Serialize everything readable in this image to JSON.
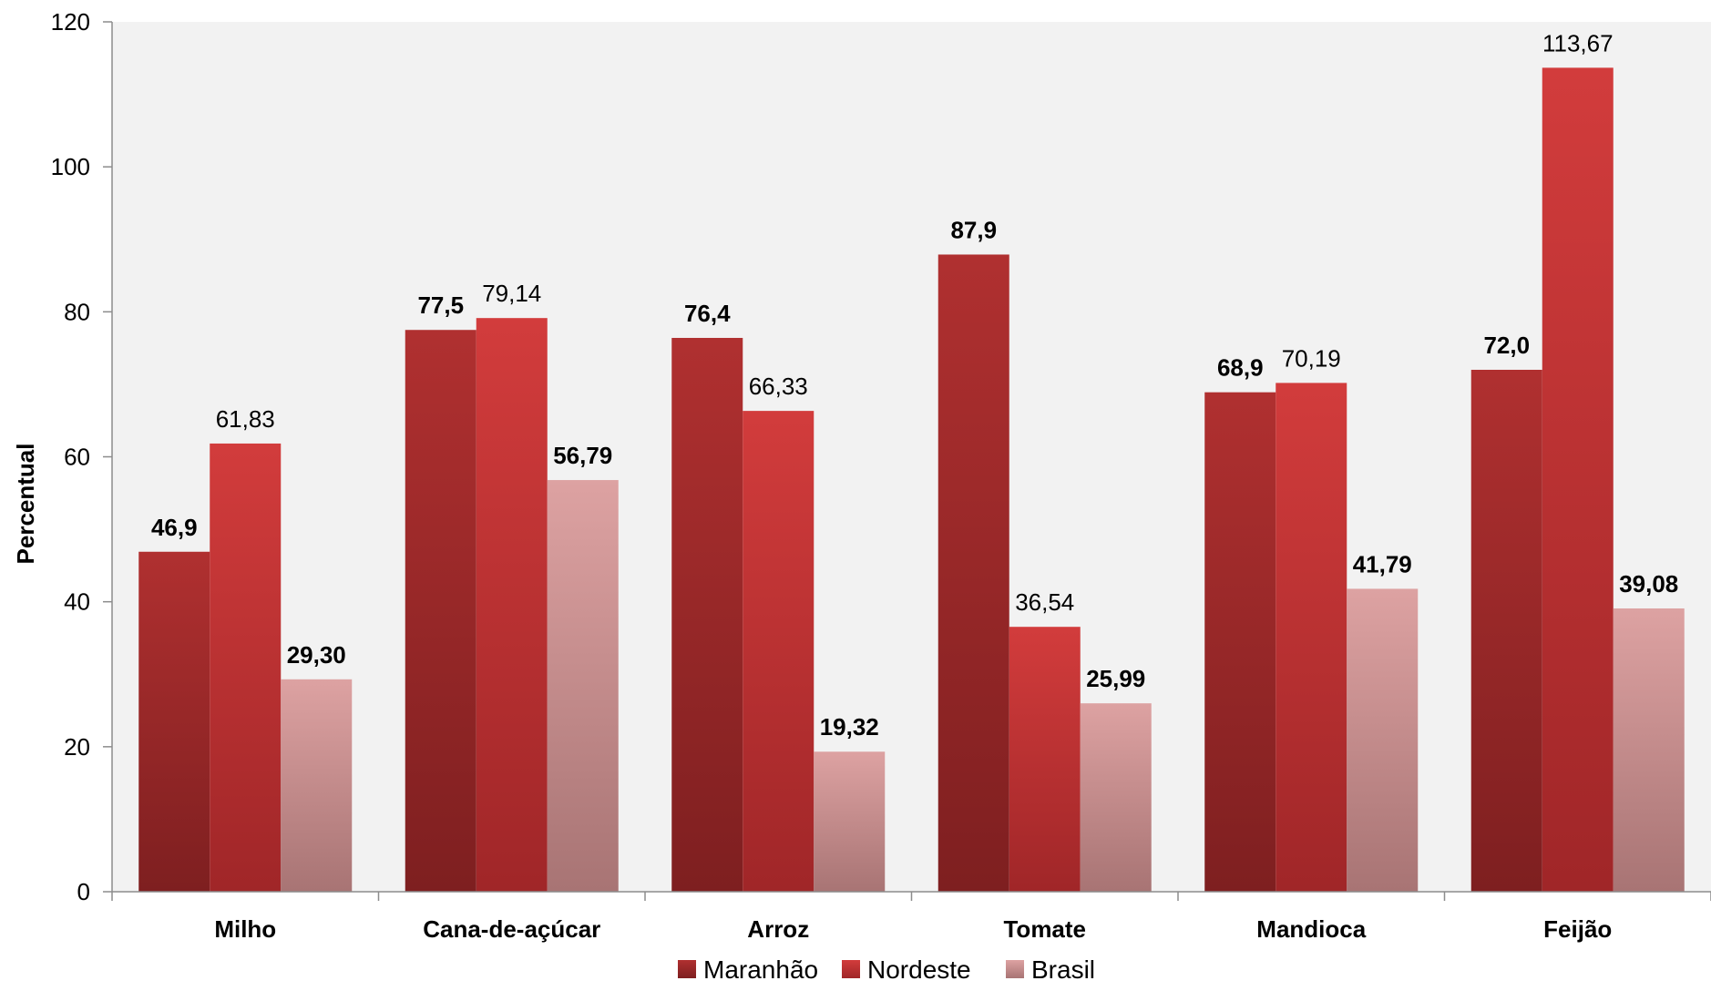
{
  "chart_data": {
    "type": "bar",
    "title": "",
    "xlabel": "",
    "ylabel": "Percentual",
    "ylim": [
      0,
      120
    ],
    "yticks": [
      0,
      20,
      40,
      60,
      80,
      100,
      120
    ],
    "grid": false,
    "legend_position": "bottom",
    "categories": [
      "Milho",
      "Cana-de-açúcar",
      "Arroz",
      "Tomate",
      "Mandioca",
      "Feijão"
    ],
    "series": [
      {
        "name": "Maranhão",
        "color": "#9e2a2b",
        "color_light": "#b03030",
        "color_dark": "#7e1f20",
        "values": [
          46.9,
          77.5,
          76.4,
          87.9,
          68.9,
          72.0
        ],
        "labels": [
          "46,9",
          "77,5",
          "76,4",
          "87,9",
          "68,9",
          "72,0"
        ],
        "label_bold": true
      },
      {
        "name": "Nordeste",
        "color": "#c9363a",
        "color_light": "#d23c3c",
        "color_dark": "#a02628",
        "values": [
          61.83,
          79.14,
          66.33,
          36.54,
          70.19,
          113.67
        ],
        "labels": [
          "61,83",
          "79,14",
          "66,33",
          "36,54",
          "70,19",
          "113,67"
        ],
        "label_bold": false
      },
      {
        "name": "Brasil",
        "color": "#d79c9c",
        "color_light": "#dda2a2",
        "color_dark": "#a87474",
        "values": [
          29.3,
          56.79,
          19.32,
          25.99,
          41.79,
          39.08
        ],
        "labels": [
          "29,30",
          "56,79",
          "19,32",
          "25,99",
          "41,79",
          "39,08"
        ],
        "label_bold": true
      }
    ]
  }
}
